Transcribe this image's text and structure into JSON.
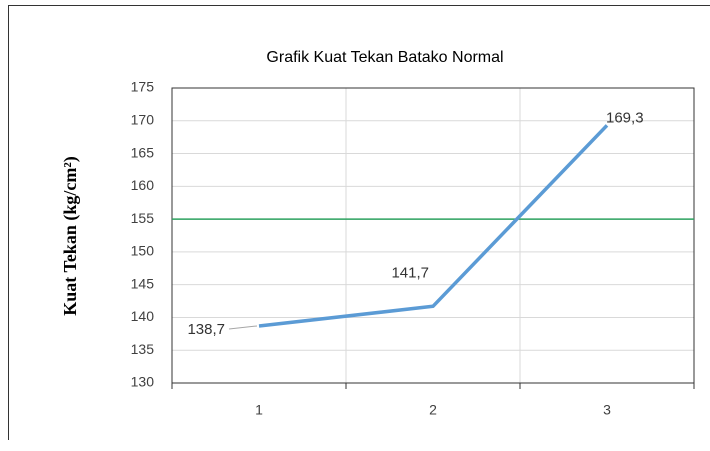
{
  "chart_data": {
    "type": "line",
    "title": "Grafik Kuat Tekan Batako Normal",
    "y_label": "Kuat Tekan (kg/cm²)",
    "categories": [
      "1",
      "2",
      "3"
    ],
    "values": [
      138.7,
      141.7,
      169.3
    ],
    "value_labels": [
      "138,7",
      "141,7",
      "169,3"
    ],
    "color": "#5b9bd5",
    "reference_line": 155,
    "reference_color": "#2ca25f",
    "ylim": [
      130,
      175
    ],
    "yticks": [
      130,
      135,
      140,
      145,
      150,
      155,
      160,
      165,
      170,
      175
    ],
    "grid": true
  }
}
